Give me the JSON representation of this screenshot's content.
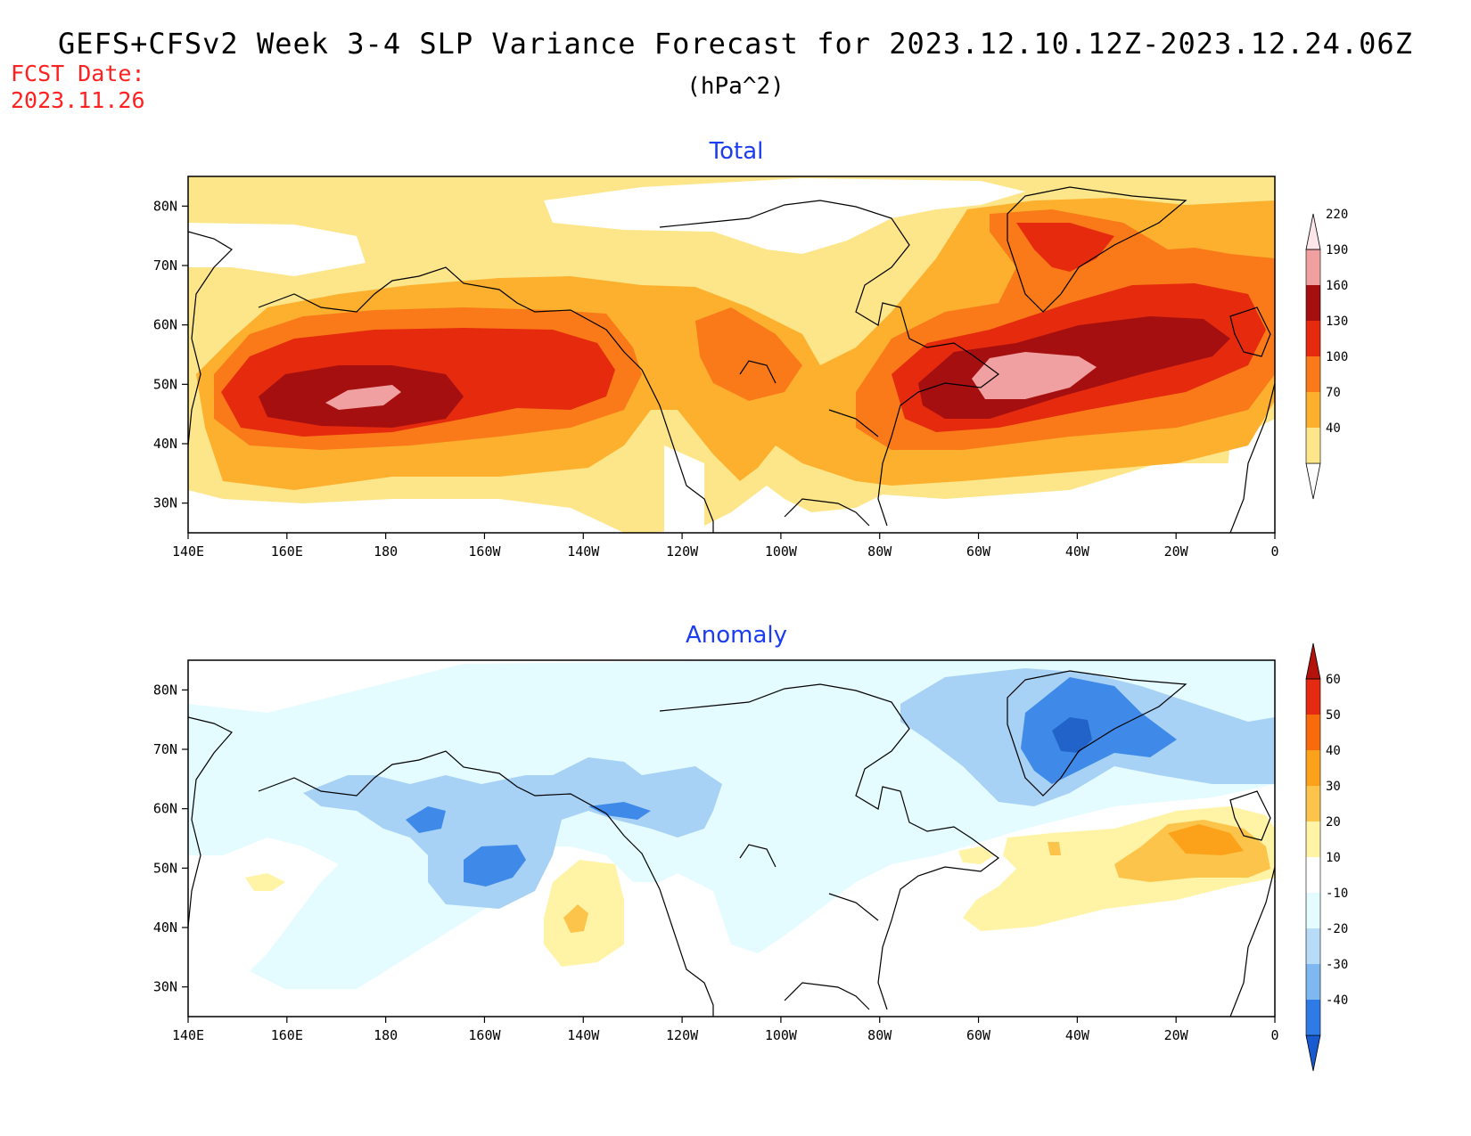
{
  "title": "GEFS+CFSv2 Week 3-4 SLP Variance Forecast for 2023.12.10.12Z-2023.12.24.06Z",
  "units": "(hPa^2)",
  "fcst_date_label": "FCST Date:",
  "fcst_date_value": "2023.11.26",
  "x_ticks": [
    "140E",
    "160E",
    "180",
    "160W",
    "140W",
    "120W",
    "100W",
    "80W",
    "60W",
    "40W",
    "20W",
    "0"
  ],
  "y_ticks": [
    "80N",
    "70N",
    "60N",
    "50N",
    "40N",
    "30N"
  ],
  "panels": [
    {
      "title": "Total",
      "colorbar": {
        "levels": [
          "40",
          "70",
          "100",
          "130",
          "160",
          "190",
          "220"
        ],
        "colors": [
          "#ffffff",
          "#fde68a",
          "#fdb02e",
          "#fa7a1a",
          "#e52a0e",
          "#a50f0f",
          "#f0a0a0",
          "#fde6ea"
        ]
      }
    },
    {
      "title": "Anomaly",
      "colorbar": {
        "levels": [
          "-40",
          "-30",
          "-20",
          "-10",
          "10",
          "20",
          "30",
          "40",
          "50",
          "60"
        ],
        "colors": [
          "#1a5ad0",
          "#2e7be8",
          "#7fb7f0",
          "#b8dcf8",
          "#e4fbff",
          "#ffffff",
          "#fff3a6",
          "#fcc44a",
          "#fba21a",
          "#f76b0b",
          "#e42a10",
          "#b3130b"
        ]
      }
    }
  ],
  "chart_data": [
    {
      "type": "heatmap",
      "title": "Total",
      "units": "hPa^2",
      "x_range": [
        "140E",
        "0"
      ],
      "y_range": [
        "25N",
        "85N"
      ],
      "contour_levels": [
        40,
        70,
        100,
        130,
        160,
        190,
        220
      ],
      "maxima": [
        {
          "lon": "175E",
          "lat": 49,
          "value_min": 190
        },
        {
          "lon": "50W",
          "lat": 50,
          "value_min": 190
        },
        {
          "lon": "42W",
          "lat": 75,
          "value_min": 130
        }
      ]
    },
    {
      "type": "heatmap",
      "title": "Anomaly",
      "units": "hPa^2",
      "x_range": [
        "140E",
        "0"
      ],
      "y_range": [
        "25N",
        "85N"
      ],
      "contour_levels": [
        -40,
        -30,
        -20,
        -10,
        10,
        20,
        30,
        40,
        50,
        60
      ],
      "maxima": [
        {
          "lon": "15W",
          "lat": 55,
          "value_min": 30
        },
        {
          "lon": "140W",
          "lat": 42,
          "value_min": 20
        }
      ],
      "minima": [
        {
          "lon": "40W",
          "lat": 73,
          "value_max": -30
        },
        {
          "lon": "160W",
          "lat": 51,
          "value_max": -30
        },
        {
          "lon": "170W",
          "lat": 58,
          "value_max": -30
        }
      ]
    }
  ]
}
